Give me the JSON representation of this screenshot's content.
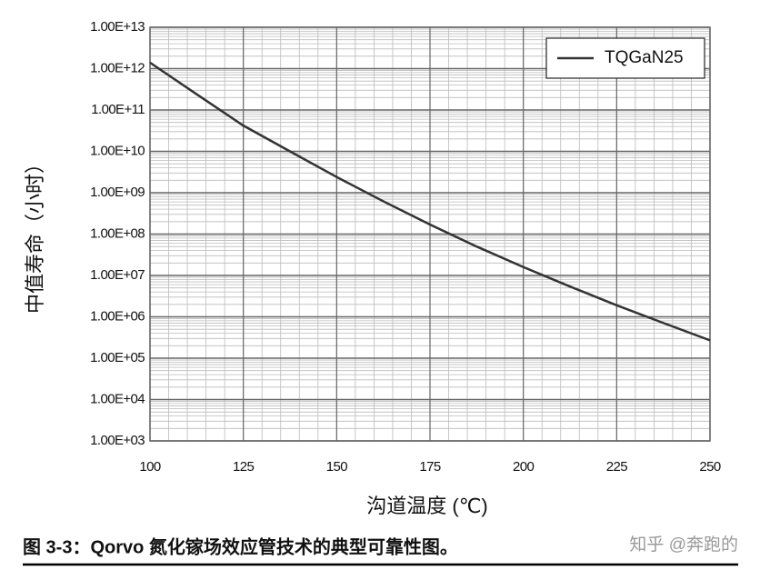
{
  "chart_data": {
    "type": "line",
    "log_y": true,
    "grid": true,
    "legend": "upper right",
    "x_label": "沟道温度 (℃)",
    "y_label": "中值寿命（小时）",
    "x": [
      100,
      112.5,
      125,
      137.5,
      150,
      162.5,
      175,
      187.5,
      200,
      212.5,
      225,
      237.5,
      250
    ],
    "series": [
      {
        "name": "TQGaN25",
        "color": "#333333",
        "values": [
          1400000000000,
          240000000000,
          42000000000,
          10000000000,
          2400000000,
          620000000,
          170000000,
          50000000,
          16000000,
          5400000,
          1900000,
          710000,
          270000
        ]
      }
    ],
    "xlim": [
      100,
      250
    ],
    "xticks": [
      100,
      125,
      150,
      175,
      200,
      225,
      250
    ],
    "ylim": [
      1000,
      10000000000000
    ],
    "yticks": [
      {
        "value": 1000,
        "label": "1.00E+03"
      },
      {
        "value": 10000,
        "label": "1.00E+04"
      },
      {
        "value": 100000,
        "label": "1.00E+05"
      },
      {
        "value": 1000000,
        "label": "1.00E+06"
      },
      {
        "value": 10000000,
        "label": "1.00E+07"
      },
      {
        "value": 100000000,
        "label": "1.00E+08"
      },
      {
        "value": 1000000000,
        "label": "1.00E+09"
      },
      {
        "value": 10000000000,
        "label": "1.00E+10"
      },
      {
        "value": 100000000000,
        "label": "1.00E+11"
      },
      {
        "value": 1000000000000,
        "label": "1.00E+12"
      },
      {
        "value": 10000000000000,
        "label": "1.00E+13"
      }
    ]
  },
  "caption": "图 3-3：Qorvo 氮化镓场效应管技术的典型可靠性图。",
  "watermark": "知乎 @奔跑的"
}
